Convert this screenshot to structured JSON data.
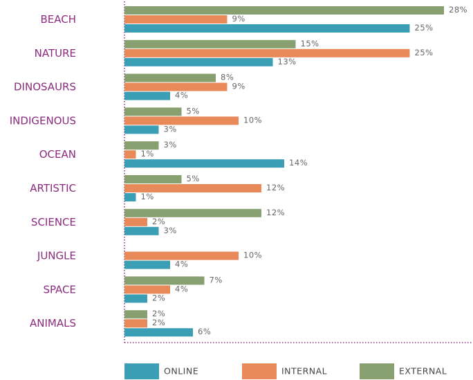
{
  "chart_data": {
    "type": "bar",
    "orientation": "horizontal",
    "categories": [
      "BEACH",
      "NATURE",
      "DINOSAURS",
      "INDIGENOUS",
      "OCEAN",
      "ARTISTIC",
      "SCIENCE",
      "JUNGLE",
      "SPACE",
      "ANIMALS"
    ],
    "series": [
      {
        "name": "EXTERNAL",
        "color": "#88a070",
        "values": [
          28,
          15,
          8,
          5,
          3,
          5,
          12,
          null,
          7,
          2
        ],
        "value_labels": [
          "28%",
          "15%",
          "8%",
          "5%",
          "3%",
          "5%",
          "12%",
          null,
          "7%",
          "2%"
        ]
      },
      {
        "name": "INTERNAL",
        "color": "#e8895a",
        "values": [
          9,
          25,
          9,
          10,
          1,
          12,
          2,
          10,
          4,
          2
        ],
        "value_labels": [
          "9%",
          "25%",
          "9%",
          "10%",
          "1%",
          "12%",
          "2%",
          "10%",
          "4%",
          "2%"
        ]
      },
      {
        "name": "ONLINE",
        "color": "#3a9fb5",
        "values": [
          25,
          13,
          4,
          3,
          14,
          1,
          3,
          4,
          2,
          6
        ],
        "value_labels": [
          "25%",
          "13%",
          "4%",
          "3%",
          "14%",
          "1%",
          "3%",
          "4%",
          "2%",
          "6%"
        ]
      }
    ],
    "legend_order": [
      "ONLINE",
      "INTERNAL",
      "EXTERNAL"
    ],
    "xlim": [
      0,
      30
    ]
  }
}
